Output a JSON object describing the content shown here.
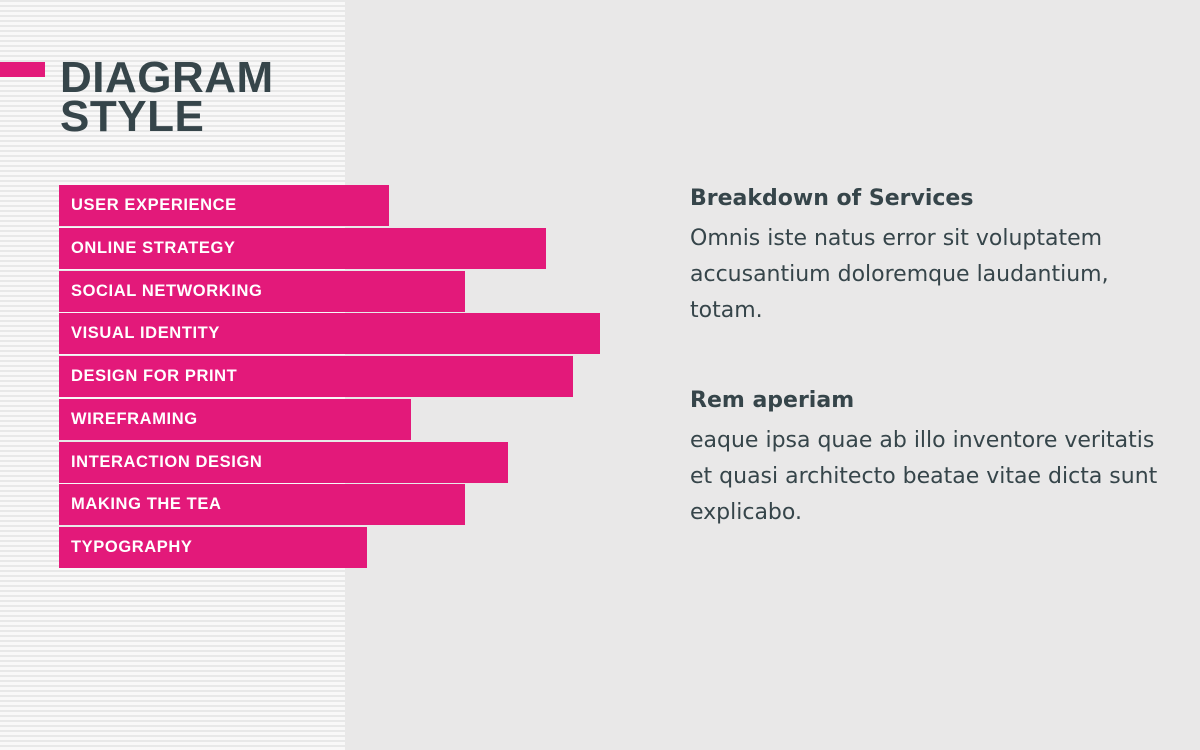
{
  "title": {
    "line1": "DIAGRAM",
    "line2": "STYLE"
  },
  "colors": {
    "accent": "#e3197a",
    "title_text": "#36454a",
    "body_text": "#36454a",
    "background": "#e9e8e8"
  },
  "chart_data": {
    "type": "bar",
    "orientation": "horizontal",
    "categories": [
      "USER EXPERIENCE",
      "ONLINE STRATEGY",
      "SOCIAL NETWORKING",
      "VISUAL IDENTITY",
      "DESIGN FOR PRINT",
      "WIREFRAMING",
      "INTERACTION DESIGN",
      "MAKING THE TEA",
      "TYPOGRAPHY"
    ],
    "values": [
      0.61,
      0.9,
      0.75,
      1.0,
      0.95,
      0.65,
      0.83,
      0.75,
      0.57
    ],
    "xlim": [
      0,
      1
    ],
    "grid": false,
    "title": "",
    "xlabel": "",
    "ylabel": ""
  },
  "text_blocks": [
    {
      "heading": "Breakdown of Services",
      "body": "Omnis iste natus error sit voluptatem accusantium doloremque laudantium, totam."
    },
    {
      "heading": "Rem aperiam",
      "body": "eaque ipsa quae ab illo inventore veritatis et quasi architecto beatae vitae dicta sunt explicabo."
    }
  ]
}
